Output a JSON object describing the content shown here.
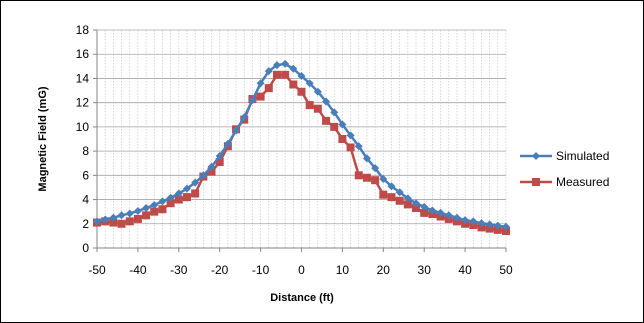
{
  "chart_data": {
    "type": "line",
    "title": "",
    "xlabel": "Distance (ft)",
    "ylabel": "Magnetic Field (mG)",
    "xlim": [
      -50,
      50
    ],
    "ylim": [
      0,
      18
    ],
    "xticks": [
      -50,
      -40,
      -30,
      -20,
      -10,
      0,
      10,
      20,
      30,
      40,
      50
    ],
    "yticks": [
      0,
      2,
      4,
      6,
      8,
      10,
      12,
      14,
      16,
      18
    ],
    "grid": true,
    "legend_position": "right",
    "series": [
      {
        "name": "Simulated",
        "color": "#4a7ebb",
        "marker": "diamond",
        "x": [
          -50,
          -48,
          -46,
          -44,
          -42,
          -40,
          -38,
          -36,
          -34,
          -32,
          -30,
          -28,
          -26,
          -24,
          -22,
          -20,
          -18,
          -16,
          -14,
          -12,
          -10,
          -8,
          -6,
          -4,
          -2,
          0,
          2,
          4,
          6,
          8,
          10,
          12,
          14,
          16,
          18,
          20,
          22,
          24,
          26,
          28,
          30,
          32,
          34,
          36,
          38,
          40,
          42,
          44,
          46,
          48,
          50
        ],
        "values": [
          2.2,
          2.35,
          2.5,
          2.7,
          2.85,
          3.05,
          3.3,
          3.55,
          3.85,
          4.15,
          4.5,
          4.9,
          5.4,
          6.0,
          6.7,
          7.6,
          8.6,
          9.7,
          10.8,
          12.2,
          13.6,
          14.6,
          15.1,
          15.2,
          14.8,
          14.2,
          13.6,
          12.9,
          12.1,
          11.2,
          10.2,
          9.3,
          8.4,
          7.4,
          6.6,
          5.7,
          5.1,
          4.6,
          4.1,
          3.7,
          3.4,
          3.1,
          2.9,
          2.7,
          2.5,
          2.3,
          2.2,
          2.05,
          1.95,
          1.85,
          1.75
        ]
      },
      {
        "name": "Measured",
        "color": "#be4b48",
        "marker": "square",
        "x": [
          -50,
          -48,
          -46,
          -44,
          -42,
          -40,
          -38,
          -36,
          -34,
          -32,
          -30,
          -28,
          -26,
          -24,
          -22,
          -20,
          -18,
          -16,
          -14,
          -12,
          -10,
          -8,
          -6,
          -4,
          -2,
          0,
          2,
          4,
          6,
          8,
          10,
          12,
          14,
          16,
          18,
          20,
          22,
          24,
          26,
          28,
          30,
          32,
          34,
          36,
          38,
          40,
          42,
          44,
          46,
          48,
          50
        ],
        "values": [
          2.1,
          2.2,
          2.1,
          2.0,
          2.2,
          2.4,
          2.7,
          3.0,
          3.2,
          3.7,
          4.0,
          4.2,
          4.5,
          5.9,
          6.3,
          7.1,
          8.4,
          9.8,
          10.6,
          12.3,
          12.5,
          13.2,
          14.3,
          14.3,
          13.5,
          12.9,
          11.8,
          11.5,
          10.5,
          10.0,
          9.0,
          8.3,
          6.0,
          5.8,
          5.6,
          4.4,
          4.2,
          3.9,
          3.6,
          3.3,
          2.9,
          2.8,
          2.6,
          2.4,
          2.2,
          2.0,
          1.9,
          1.7,
          1.6,
          1.5,
          1.4
        ]
      }
    ]
  }
}
